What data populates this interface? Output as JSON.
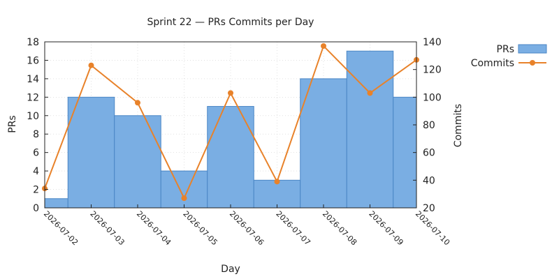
{
  "chart_data": {
    "type": "bar+line",
    "title": "Sprint 22 — PRs  Commits per Day",
    "xlabel": "Day",
    "ylabel_left": "PRs",
    "ylabel_right": "Commits",
    "x_tick_labels": [
      "2026-07-02",
      "2026-07-03",
      "2026-07-04",
      "2026-07-05",
      "2026-07-06",
      "2026-07-07",
      "2026-07-08",
      "2026-07-09",
      "2026-07-10"
    ],
    "ylim_left": [
      0,
      18
    ],
    "ylim_right": [
      20,
      140
    ],
    "yticks_left": [
      0,
      2,
      4,
      6,
      8,
      10,
      12,
      14,
      16,
      18
    ],
    "yticks_right": [
      20,
      40,
      60,
      80,
      100,
      120,
      140
    ],
    "grid": true,
    "legend_position": "top-right outside",
    "series": [
      {
        "name": "PRs",
        "type": "bar",
        "axis": "left",
        "color": "#7aaee3",
        "edge_color": "#4a86c5",
        "x": [
          "2026-07-02",
          "2026-07-03",
          "2026-07-04",
          "2026-07-05",
          "2026-07-06",
          "2026-07-07",
          "2026-07-08",
          "2026-07-09",
          "2026-07-10"
        ],
        "values": [
          1,
          12,
          10,
          4,
          11,
          3,
          14,
          17,
          12
        ]
      },
      {
        "name": "Commits",
        "type": "line",
        "axis": "right",
        "color": "#e8822a",
        "x": [
          "2026-07-02",
          "2026-07-03",
          "2026-07-04",
          "2026-07-05",
          "2026-07-06",
          "2026-07-07",
          "2026-07-08",
          "2026-07-09",
          "2026-07-10"
        ],
        "values": [
          34,
          123,
          96,
          27,
          103,
          39,
          137,
          103,
          127
        ]
      }
    ]
  }
}
